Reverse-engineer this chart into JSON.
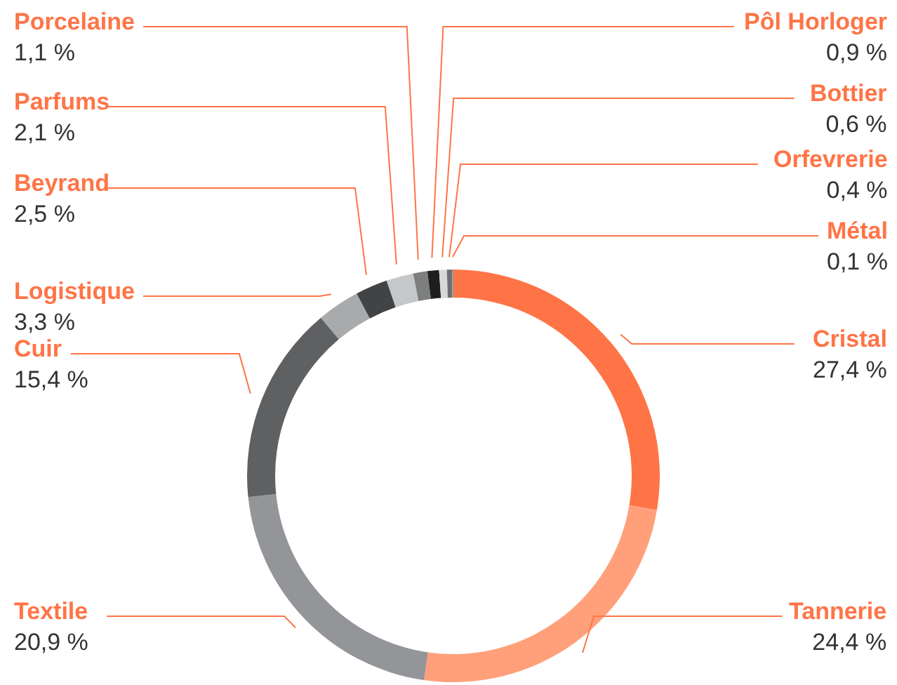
{
  "chart_data": {
    "type": "donut",
    "categories": [
      "Cristal",
      "Tannerie",
      "Textile",
      "Cuir",
      "Logistique",
      "Beyrand",
      "Parfums",
      "Porcelaine",
      "Pôl Horloger",
      "Bottier",
      "Orfevrerie",
      "Métal"
    ],
    "values": [
      27.4,
      24.4,
      20.9,
      15.4,
      3.3,
      2.5,
      2.1,
      1.1,
      0.9,
      0.6,
      0.4,
      0.1
    ],
    "colors": [
      "#ff7446",
      "#ffa07a",
      "#939598",
      "#5f6062",
      "#a9aaac",
      "#424345",
      "#c6c7c8",
      "#7d7e80",
      "#1e1e1f",
      "#d8d8d8",
      "#6d6e70",
      "#9a9a9a"
    ],
    "value_labels": [
      "27,4 %",
      "24,4 %",
      "20,9 %",
      "15,4 %",
      "3,3 %",
      "2,5 %",
      "2,1 %",
      "1,1 %",
      "0,9 %",
      "0,6 %",
      "0,4 %",
      "0,1 %"
    ]
  }
}
